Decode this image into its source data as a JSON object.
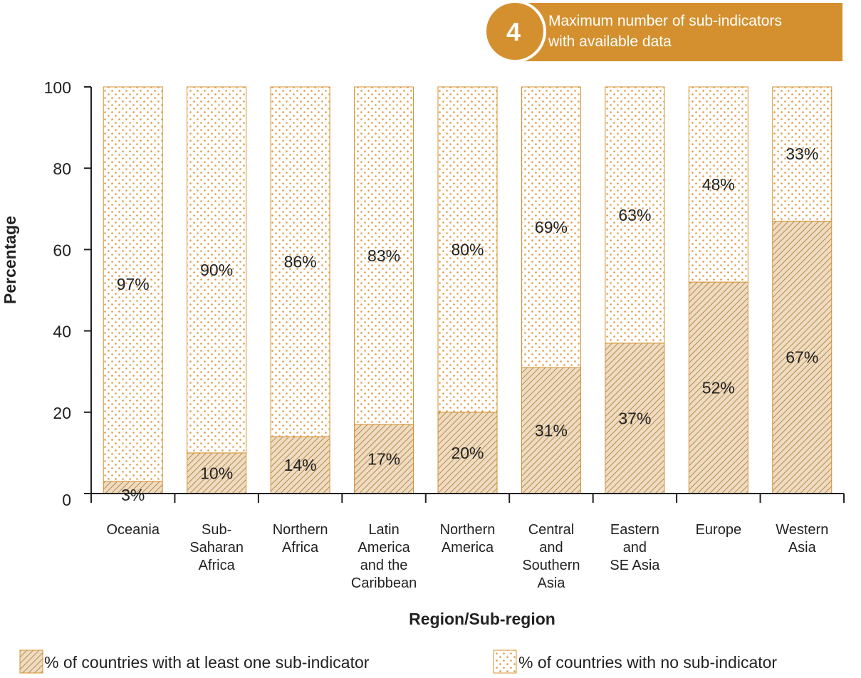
{
  "badge": {
    "number": "4",
    "text_line1": "Maximum number of sub-indicators",
    "text_line2": "with available data"
  },
  "colors": {
    "accent": "#d4902f",
    "bar_outline": "#d4902f",
    "hatch_line": "#b9894a",
    "hatch_fill": "#eedcc2",
    "dot": "#e09a45",
    "axis": "#222222"
  },
  "chart_data": {
    "type": "bar",
    "stacked": true,
    "orientation": "vertical",
    "title": "",
    "xlabel": "Region/Sub-region",
    "ylabel": "Percentage",
    "ylim": [
      0,
      100
    ],
    "yticks": [
      "0",
      "20",
      "40",
      "60",
      "80",
      "100"
    ],
    "categories": [
      [
        "Oceania"
      ],
      [
        "Sub-",
        "Saharan",
        "Africa"
      ],
      [
        "Northern",
        "Africa"
      ],
      [
        "Latin",
        "America",
        "and the",
        "Caribbean"
      ],
      [
        "Northern",
        "America"
      ],
      [
        "Central",
        "and",
        "Southern",
        "Asia"
      ],
      [
        "Eastern",
        "and",
        "SE Asia"
      ],
      [
        "Europe"
      ],
      [
        "Western",
        "Asia"
      ]
    ],
    "series": [
      {
        "name": "% of countries with at least one sub-indicator",
        "pattern": "hatch",
        "values": [
          3,
          10,
          14,
          17,
          20,
          31,
          37,
          52,
          67
        ],
        "labels": [
          "3%",
          "10%",
          "14%",
          "17%",
          "20%",
          "31%",
          "37%",
          "52%",
          "67%"
        ]
      },
      {
        "name": "% of countries with no sub-indicator",
        "pattern": "dots",
        "values": [
          97,
          90,
          86,
          83,
          80,
          69,
          63,
          48,
          33
        ],
        "labels": [
          "97%",
          "90%",
          "86%",
          "83%",
          "80%",
          "69%",
          "63%",
          "48%",
          "33%"
        ]
      }
    ],
    "legend_position": "bottom",
    "grid": false
  }
}
